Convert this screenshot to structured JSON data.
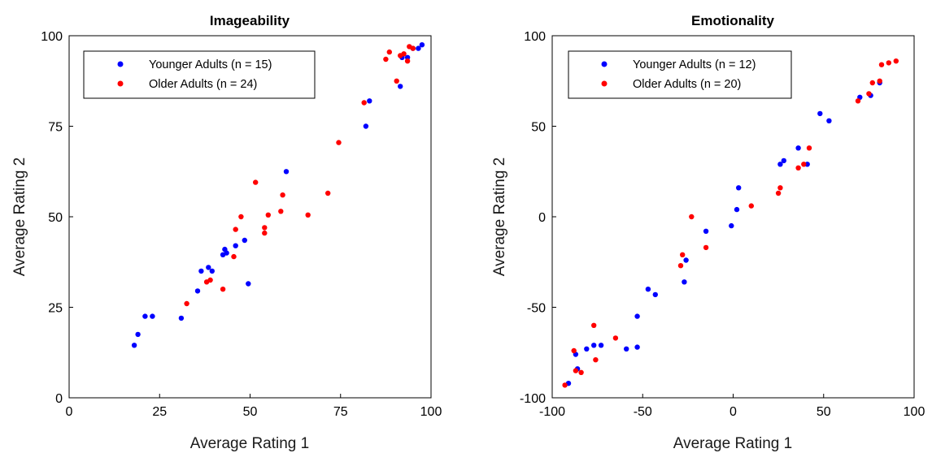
{
  "chart_data": [
    {
      "type": "scatter",
      "title": "Imageability",
      "xlabel": "Average Rating 1",
      "ylabel": "Average Rating 2",
      "xlim": [
        0,
        100
      ],
      "ylim": [
        0,
        100
      ],
      "xticks": [
        0,
        25,
        50,
        75,
        100
      ],
      "yticks": [
        0,
        25,
        50,
        75,
        100
      ],
      "xtick_labels": [
        "0",
        "25",
        "50",
        "75",
        "100"
      ],
      "ytick_labels": [
        "0",
        "25",
        "50",
        "75",
        "100"
      ],
      "grid": false,
      "legend_position": "top-left",
      "series": [
        {
          "name": "Younger Adults (n = 15)",
          "color": "#0000ff",
          "points": [
            [
              18,
              14.5
            ],
            [
              19,
              17.5
            ],
            [
              21,
              22.5
            ],
            [
              23,
              22.5
            ],
            [
              31,
              22
            ],
            [
              35.5,
              29.5
            ],
            [
              36.5,
              35
            ],
            [
              38.5,
              36
            ],
            [
              39.5,
              35
            ],
            [
              42.5,
              39.5
            ],
            [
              43,
              41
            ],
            [
              43.5,
              40
            ],
            [
              46,
              42
            ],
            [
              48.5,
              43.5
            ],
            [
              49.5,
              31.5
            ],
            [
              60,
              62.5
            ],
            [
              82,
              75
            ],
            [
              83,
              82
            ],
            [
              91.5,
              86
            ],
            [
              92,
              94
            ],
            [
              93.5,
              94
            ],
            [
              95,
              96.5
            ],
            [
              96.5,
              96.5
            ],
            [
              97.5,
              97.5
            ]
          ]
        },
        {
          "name": "Older Adults (n = 24)",
          "color": "#ff0000",
          "points": [
            [
              32.5,
              26
            ],
            [
              38,
              32
            ],
            [
              39,
              32.5
            ],
            [
              42.5,
              30
            ],
            [
              45.5,
              39
            ],
            [
              46,
              46.5
            ],
            [
              47.5,
              50
            ],
            [
              51.5,
              59.5
            ],
            [
              54,
              47
            ],
            [
              54,
              45.5
            ],
            [
              55,
              50.5
            ],
            [
              58.5,
              51.5
            ],
            [
              59,
              56
            ],
            [
              66,
              50.5
            ],
            [
              71.5,
              56.5
            ],
            [
              74.5,
              70.5
            ],
            [
              81.5,
              81.5
            ],
            [
              87.5,
              93.5
            ],
            [
              88.5,
              95.5
            ],
            [
              90.5,
              87.5
            ],
            [
              91.5,
              94.5
            ],
            [
              92.5,
              95
            ],
            [
              93.5,
              93
            ],
            [
              94,
              97
            ],
            [
              95,
              96.5
            ]
          ]
        }
      ]
    },
    {
      "type": "scatter",
      "title": "Emotionality",
      "xlabel": "Average Rating 1",
      "ylabel": "Average Rating 2",
      "xlim": [
        -100,
        100
      ],
      "ylim": [
        -100,
        100
      ],
      "xticks": [
        -100,
        -50,
        0,
        50,
        100
      ],
      "yticks": [
        -100,
        -50,
        0,
        50,
        100
      ],
      "xtick_labels": [
        "-100",
        "-50",
        "0",
        "50",
        "100"
      ],
      "ytick_labels": [
        "-100",
        "-50",
        "0",
        "50",
        "100"
      ],
      "grid": false,
      "legend_position": "top-left",
      "series": [
        {
          "name": "Younger Adults (n = 12)",
          "color": "#0000ff",
          "points": [
            [
              -91,
              -92
            ],
            [
              -87,
              -76
            ],
            [
              -86,
              -84
            ],
            [
              -81,
              -73
            ],
            [
              -77,
              -71
            ],
            [
              -73,
              -71
            ],
            [
              -59,
              -73
            ],
            [
              -53,
              -72
            ],
            [
              -53,
              -55
            ],
            [
              -47,
              -40
            ],
            [
              -43,
              -43
            ],
            [
              -27,
              -36
            ],
            [
              -26,
              -24
            ],
            [
              -15,
              -8
            ],
            [
              -1,
              -5
            ],
            [
              2,
              4
            ],
            [
              3,
              16
            ],
            [
              26,
              29
            ],
            [
              28,
              31
            ],
            [
              36,
              38
            ],
            [
              41,
              29
            ],
            [
              48,
              57
            ],
            [
              53,
              53
            ],
            [
              70,
              66
            ],
            [
              76,
              67
            ],
            [
              81,
              74
            ]
          ]
        },
        {
          "name": "Older Adults  (n = 20)",
          "color": "#ff0000",
          "points": [
            [
              -93,
              -93
            ],
            [
              -88,
              -74
            ],
            [
              -87,
              -85
            ],
            [
              -84,
              -86
            ],
            [
              -77,
              -60
            ],
            [
              -76,
              -79
            ],
            [
              -65,
              -67
            ],
            [
              -29,
              -27
            ],
            [
              -28,
              -21
            ],
            [
              -23,
              0
            ],
            [
              -15,
              -17
            ],
            [
              10,
              6
            ],
            [
              25,
              13
            ],
            [
              26,
              16
            ],
            [
              36,
              27
            ],
            [
              39,
              29
            ],
            [
              42,
              38
            ],
            [
              69,
              64
            ],
            [
              75,
              68
            ],
            [
              77,
              74
            ],
            [
              81,
              75
            ],
            [
              82,
              84
            ],
            [
              86,
              85
            ],
            [
              90,
              86
            ]
          ]
        }
      ]
    }
  ]
}
